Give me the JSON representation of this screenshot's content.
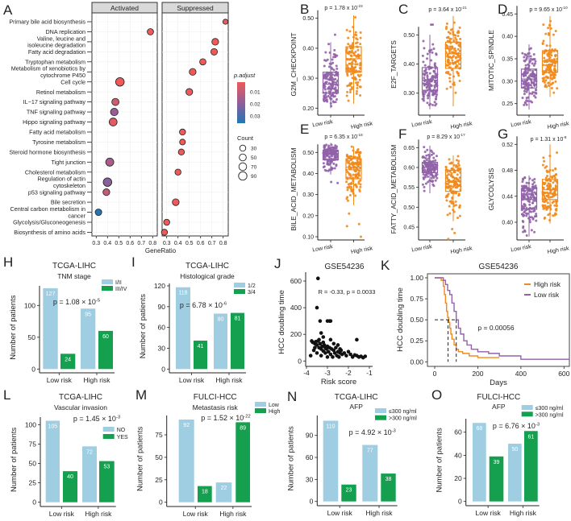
{
  "colors": {
    "purple": "#9162a9",
    "orange": "#f08a1c",
    "blue": "#9fcde2",
    "green": "#14a04f",
    "low_p": "#ee5a5a",
    "mid_p": "#915e9a",
    "high_p": "#1f77b4"
  },
  "chart_data": [
    {
      "panel": "A",
      "type": "scatter",
      "title": "",
      "xlabel": "GeneRatio",
      "xlim": [
        0.27,
        0.85
      ],
      "xticks": [
        "0.3",
        "0.4",
        "0.5",
        "0.6",
        "0.7",
        "0.8"
      ],
      "facets": [
        "Activated",
        "Suppressed"
      ],
      "legend": {
        "color_title": "p.adjust",
        "color_ticks": [
          "0.01",
          "0.02",
          "0.03"
        ],
        "size_title": "Count",
        "size_ticks": [
          "30",
          "50",
          "70",
          "90"
        ]
      },
      "terms": [
        {
          "name": [
            "Primary bile acid biosynthesis"
          ],
          "facet": 1,
          "x": 0.82,
          "count": 15,
          "padj": 0.004
        },
        {
          "name": [
            "DNA replication"
          ],
          "facet": 0,
          "x": 0.78,
          "count": 35,
          "padj": 0.004
        },
        {
          "name": [
            "Valine, leucine and",
            "isoleucine degradation"
          ],
          "facet": 1,
          "x": 0.73,
          "count": 45,
          "padj": 0.004
        },
        {
          "name": [
            "Fatty acid degradation"
          ],
          "facet": 1,
          "x": 0.72,
          "count": 40,
          "padj": 0.004
        },
        {
          "name": [
            "Tryptophan metabolism"
          ],
          "facet": 1,
          "x": 0.62,
          "count": 35,
          "padj": 0.004
        },
        {
          "name": [
            "Metabolism of xenobiotics by",
            "cytochrome P450"
          ],
          "facet": 1,
          "x": 0.53,
          "count": 45,
          "padj": 0.004
        },
        {
          "name": [
            "Cell cycle"
          ],
          "facet": 0,
          "x": 0.51,
          "count": 95,
          "padj": 0.004
        },
        {
          "name": [
            "Retinol metabolism"
          ],
          "facet": 1,
          "x": 0.5,
          "count": 45,
          "padj": 0.004
        },
        {
          "name": [
            "IL−17 signaling pathway"
          ],
          "facet": 0,
          "x": 0.47,
          "count": 55,
          "padj": 0.01
        },
        {
          "name": [
            "TNF signaling pathway"
          ],
          "facet": 0,
          "x": 0.46,
          "count": 65,
          "padj": 0.019
        },
        {
          "name": [
            "Hippo signaling pathway"
          ],
          "facet": 0,
          "x": 0.45,
          "count": 75,
          "padj": 0.006
        },
        {
          "name": [
            "Fatty acid metabolism"
          ],
          "facet": 1,
          "x": 0.44,
          "count": 30,
          "padj": 0.004
        },
        {
          "name": [
            "Tyrosine metabolism"
          ],
          "facet": 1,
          "x": 0.44,
          "count": 25,
          "padj": 0.004
        },
        {
          "name": [
            "Steroid hormone biosynthesis"
          ],
          "facet": 1,
          "x": 0.43,
          "count": 30,
          "padj": 0.004
        },
        {
          "name": [
            "Tight junction"
          ],
          "facet": 0,
          "x": 0.42,
          "count": 80,
          "padj": 0.016
        },
        {
          "name": [
            "Cholesterol metabolism"
          ],
          "facet": 1,
          "x": 0.4,
          "count": 30,
          "padj": 0.004
        },
        {
          "name": [
            "Regulation of actin",
            "cytoskeleton"
          ],
          "facet": 0,
          "x": 0.4,
          "count": 95,
          "padj": 0.021
        },
        {
          "name": [
            "p53 signaling pathway"
          ],
          "facet": 0,
          "x": 0.39,
          "count": 45,
          "padj": 0.011
        },
        {
          "name": [
            "Bile secretion"
          ],
          "facet": 1,
          "x": 0.38,
          "count": 45,
          "padj": 0.004
        },
        {
          "name": [
            "Central carbon metabolism in",
            "cancer"
          ],
          "facet": 0,
          "x": 0.32,
          "count": 40,
          "padj": 0.035
        },
        {
          "name": [
            "Glycolysis/Gluconeogenesis"
          ],
          "facet": 1,
          "x": 0.3,
          "count": 30,
          "padj": 0.004
        },
        {
          "name": [
            "Biosynthesis of amino acids"
          ],
          "facet": 1,
          "x": 0.28,
          "count": 30,
          "padj": 0.004
        }
      ]
    },
    {
      "panel": "B",
      "type": "box",
      "ylabel": "G2M_CHECKPOINT",
      "categories": [
        "Low risk",
        "High risk"
      ],
      "yticks": [
        "0.20",
        "0.30",
        "0.40",
        "0.50"
      ],
      "p_text": "p = 1.78 x 10",
      "p_exp": "-23",
      "groups": [
        {
          "q1": 0.25,
          "median": 0.28,
          "q3": 0.32,
          "min": 0.2,
          "max": 0.42,
          "outliers": [
            0.445
          ]
        },
        {
          "q1": 0.32,
          "median": 0.365,
          "q3": 0.405,
          "min": 0.215,
          "max": 0.51,
          "outliers": []
        }
      ]
    },
    {
      "panel": "C",
      "type": "box",
      "ylabel": "E2F_TARGETS",
      "categories": [
        "Low risk",
        "High risk"
      ],
      "yticks": [
        "0.30",
        "0.40",
        "0.50"
      ],
      "p_text": "p = 3.64 x 10",
      "p_exp": "-21",
      "groups": [
        {
          "q1": 0.31,
          "median": 0.345,
          "q3": 0.388,
          "min": 0.245,
          "max": 0.5,
          "outliers": [
            0.535,
            0.535
          ]
        },
        {
          "q1": 0.385,
          "median": 0.435,
          "q3": 0.475,
          "min": 0.255,
          "max": 0.565,
          "outliers": []
        }
      ]
    },
    {
      "panel": "D",
      "type": "box",
      "ylabel": "MITOTIC_SPINDLE",
      "categories": [
        "Low risk",
        "High risk"
      ],
      "yticks": [
        "0.25",
        "0.30",
        "0.35",
        "0.40",
        "0.45"
      ],
      "p_text": "p = 9.65 x 10",
      "p_exp": "-10",
      "groups": [
        {
          "q1": 0.285,
          "median": 0.305,
          "q3": 0.327,
          "min": 0.237,
          "max": 0.382,
          "outliers": []
        },
        {
          "q1": 0.32,
          "median": 0.345,
          "q3": 0.368,
          "min": 0.265,
          "max": 0.445,
          "outliers": []
        }
      ]
    },
    {
      "panel": "E",
      "type": "box",
      "ylabel": "BILE_ACID_METABOLISM",
      "categories": [
        "Low risk",
        "High risk"
      ],
      "yticks": [
        "0.10",
        "0.20",
        "0.30",
        "0.40",
        "0.50"
      ],
      "p_text": "p = 6.35 x 10",
      "p_exp": "-18",
      "groups": [
        {
          "q1": 0.465,
          "median": 0.49,
          "q3": 0.51,
          "min": 0.395,
          "max": 0.545,
          "outliers": [
            0.36,
            0.355
          ]
        },
        {
          "q1": 0.375,
          "median": 0.43,
          "q3": 0.47,
          "min": 0.25,
          "max": 0.53,
          "outliers": [
            0.21,
            0.16,
            0.15,
            0.1
          ]
        }
      ]
    },
    {
      "panel": "F",
      "type": "box",
      "ylabel": "FATTY_ACID_METABOLISM",
      "categories": [
        "Low risk",
        "High risk"
      ],
      "yticks": [
        "0.45",
        "0.50",
        "0.55",
        "0.60",
        "0.65"
      ],
      "p_text": "p = 8.29 x 10",
      "p_exp": "-17",
      "groups": [
        {
          "q1": 0.587,
          "median": 0.6,
          "q3": 0.613,
          "min": 0.535,
          "max": 0.655,
          "outliers": []
        },
        {
          "q1": 0.54,
          "median": 0.565,
          "q3": 0.593,
          "min": 0.465,
          "max": 0.63,
          "outliers": [
            0.445,
            0.435,
            0.42
          ]
        }
      ]
    },
    {
      "panel": "G",
      "type": "box",
      "ylabel": "GLYCOLYSIS",
      "categories": [
        "Low risk",
        "High risk"
      ],
      "yticks": [
        "0.40",
        "0.44",
        "0.48",
        "0.52"
      ],
      "p_text": "p = 1.31 x 10",
      "p_exp": "-8",
      "groups": [
        {
          "q1": 0.42,
          "median": 0.435,
          "q3": 0.452,
          "min": 0.378,
          "max": 0.472,
          "outliers": []
        },
        {
          "q1": 0.435,
          "median": 0.45,
          "q3": 0.466,
          "min": 0.398,
          "max": 0.52,
          "outliers": []
        }
      ]
    },
    {
      "panel": "H",
      "type": "bar",
      "title": "TCGA-LIHC",
      "subtitle": "TNM stage",
      "ylabel": "Number of patients",
      "categories": [
        "Low risk",
        "High risk"
      ],
      "yticks": [
        "0",
        "50",
        "100"
      ],
      "p_text": "p = 1.08 × 10",
      "p_exp": "-5",
      "series": [
        {
          "name": "I/II",
          "values": [
            127,
            95
          ]
        },
        {
          "name": "III/IV",
          "values": [
            24,
            60
          ]
        }
      ]
    },
    {
      "panel": "I",
      "type": "bar",
      "title": "TCGA-LIHC",
      "subtitle": "Histological grade",
      "ylabel": "Number of patients",
      "categories": [
        "Low risk",
        "High risk"
      ],
      "yticks": [
        "0",
        "30",
        "60",
        "90",
        "120"
      ],
      "p_text": "p = 6.78 × 10",
      "p_exp": "-6",
      "series": [
        {
          "name": "1/2",
          "values": [
            118,
            80
          ]
        },
        {
          "name": "3/4",
          "values": [
            41,
            81
          ]
        }
      ]
    },
    {
      "panel": "J",
      "type": "scatter",
      "title": "GSE54236",
      "xlabel": "Risk score",
      "ylabel": "HCC doubling time",
      "xticks": [
        "-4",
        "-3",
        "-2",
        "-1"
      ],
      "yticks": [
        "0",
        "200",
        "400",
        "600"
      ],
      "annotation": "R = -0.33, p = 0.0033",
      "points": [
        [
          -3.45,
          620
        ],
        [
          -3.5,
          400
        ],
        [
          -3.35,
          300
        ],
        [
          -3.0,
          300
        ],
        [
          -2.9,
          300
        ],
        [
          -2.85,
          300
        ],
        [
          -3.3,
          210
        ],
        [
          -3.2,
          180
        ],
        [
          -2.85,
          160
        ],
        [
          -1.6,
          160
        ],
        [
          -2.5,
          120
        ],
        [
          -3.8,
          40
        ],
        [
          -3.75,
          150
        ],
        [
          -3.7,
          140
        ],
        [
          -3.65,
          80
        ],
        [
          -3.6,
          130
        ],
        [
          -3.55,
          145
        ],
        [
          -3.5,
          120
        ],
        [
          -3.5,
          60
        ],
        [
          -3.45,
          150
        ],
        [
          -3.4,
          100
        ],
        [
          -3.4,
          160
        ],
        [
          -3.35,
          130
        ],
        [
          -3.3,
          90
        ],
        [
          -3.3,
          40
        ],
        [
          -3.25,
          110
        ],
        [
          -3.2,
          75
        ],
        [
          -3.15,
          120
        ],
        [
          -3.1,
          60
        ],
        [
          -3.1,
          100
        ],
        [
          -3.05,
          90
        ],
        [
          -3.0,
          30
        ],
        [
          -3.0,
          110
        ],
        [
          -2.95,
          70
        ],
        [
          -2.9,
          100
        ],
        [
          -2.85,
          50
        ],
        [
          -2.8,
          90
        ],
        [
          -2.75,
          30
        ],
        [
          -2.7,
          80
        ],
        [
          -2.65,
          60
        ],
        [
          -2.6,
          100
        ],
        [
          -2.55,
          40
        ],
        [
          -2.5,
          70
        ],
        [
          -2.45,
          30
        ],
        [
          -2.4,
          60
        ],
        [
          -2.35,
          80
        ],
        [
          -2.3,
          50
        ],
        [
          -2.2,
          60
        ],
        [
          -2.1,
          40
        ],
        [
          -2.0,
          70
        ],
        [
          -1.9,
          50
        ],
        [
          -1.8,
          30
        ],
        [
          -1.7,
          45
        ],
        [
          -1.6,
          40
        ],
        [
          -1.5,
          30
        ],
        [
          -1.4,
          35
        ],
        [
          -1.3,
          25
        ],
        [
          -1.2,
          35
        ],
        [
          -3.6,
          100
        ],
        [
          -2.7,
          130
        ],
        [
          -3.2,
          140
        ],
        [
          -2.4,
          90
        ]
      ]
    },
    {
      "panel": "K",
      "type": "line",
      "title": "GSE54236",
      "xlabel": "Days",
      "ylabel": "HCC doubling time",
      "xticks": [
        "0",
        "200",
        "400",
        "600"
      ],
      "yticks": [
        "0.00",
        "0.25",
        "0.50",
        "0.75",
        "1.00"
      ],
      "annotation": "p = 0.00056",
      "medians": [
        62,
        100
      ],
      "series": [
        {
          "name": "High risk",
          "points": [
            [
              0,
              1
            ],
            [
              25,
              1
            ],
            [
              30,
              0.97
            ],
            [
              40,
              0.9
            ],
            [
              45,
              0.8
            ],
            [
              50,
              0.7
            ],
            [
              55,
              0.6
            ],
            [
              60,
              0.53
            ],
            [
              65,
              0.47
            ],
            [
              70,
              0.4
            ],
            [
              75,
              0.33
            ],
            [
              80,
              0.27
            ],
            [
              90,
              0.2
            ],
            [
              100,
              0.15
            ],
            [
              110,
              0.12
            ],
            [
              130,
              0.1
            ],
            [
              160,
              0.07
            ],
            [
              200,
              0.05
            ],
            [
              300,
              0.05
            ]
          ]
        },
        {
          "name": "Low risk",
          "points": [
            [
              0,
              1
            ],
            [
              30,
              1
            ],
            [
              40,
              0.97
            ],
            [
              50,
              0.92
            ],
            [
              60,
              0.85
            ],
            [
              70,
              0.8
            ],
            [
              80,
              0.7
            ],
            [
              90,
              0.6
            ],
            [
              100,
              0.5
            ],
            [
              110,
              0.4
            ],
            [
              120,
              0.33
            ],
            [
              135,
              0.25
            ],
            [
              150,
              0.2
            ],
            [
              170,
              0.15
            ],
            [
              200,
              0.12
            ],
            [
              250,
              0.1
            ],
            [
              300,
              0.07
            ],
            [
              400,
              0.05
            ],
            [
              400,
              0.03
            ],
            [
              620,
              0.03
            ],
            [
              625,
              0.01
            ]
          ]
        }
      ]
    },
    {
      "panel": "L",
      "type": "bar",
      "title": "TCGA-LIHC",
      "subtitle": "Vascular invasion",
      "ylabel": "Number of patients",
      "categories": [
        "Low risk",
        "High risk"
      ],
      "yticks": [
        "0",
        "25",
        "50",
        "75",
        "100"
      ],
      "p_text": "p = 1.45 × 10",
      "p_exp": "-3",
      "series": [
        {
          "name": "NO",
          "values": [
            105,
            72
          ]
        },
        {
          "name": "YES",
          "values": [
            40,
            53
          ]
        }
      ]
    },
    {
      "panel": "M",
      "type": "bar",
      "title": "FULCI-HCC",
      "subtitle": "Metastasis risk",
      "ylabel": "Number of patients",
      "categories": [
        "Low risk",
        "High risk"
      ],
      "yticks": [
        "0",
        "25",
        "50",
        "75"
      ],
      "p_text": "p = 1.52 × 10",
      "p_exp": "-22",
      "series": [
        {
          "name": "Low",
          "values": [
            92,
            22
          ]
        },
        {
          "name": "High",
          "values": [
            18,
            89
          ]
        }
      ]
    },
    {
      "panel": "N",
      "type": "bar",
      "title": "TCGA-LIHC",
      "subtitle": "AFP",
      "ylabel": "Number of patients",
      "categories": [
        "Low risk",
        "High risk"
      ],
      "yticks": [
        "0",
        "30",
        "60",
        "90"
      ],
      "p_text": "p = 4.92 × 10",
      "p_exp": "-3",
      "series": [
        {
          "name": "≤300 ng/ml",
          "values": [
            110,
            77
          ]
        },
        {
          "name": ">300 ng/ml",
          "values": [
            23,
            38
          ]
        }
      ]
    },
    {
      "panel": "O",
      "type": "bar",
      "title": "FULCI-HCC",
      "subtitle": "AFP",
      "ylabel": "Number of patients",
      "categories": [
        "Low risk",
        "High risk"
      ],
      "yticks": [
        "0",
        "20",
        "40",
        "60"
      ],
      "p_text": "p = 6.76 × 10",
      "p_exp": "-3",
      "series": [
        {
          "name": "≤300 ng/ml",
          "values": [
            68,
            50
          ]
        },
        {
          "name": ">300 ng/ml",
          "values": [
            39,
            61
          ]
        }
      ]
    }
  ]
}
